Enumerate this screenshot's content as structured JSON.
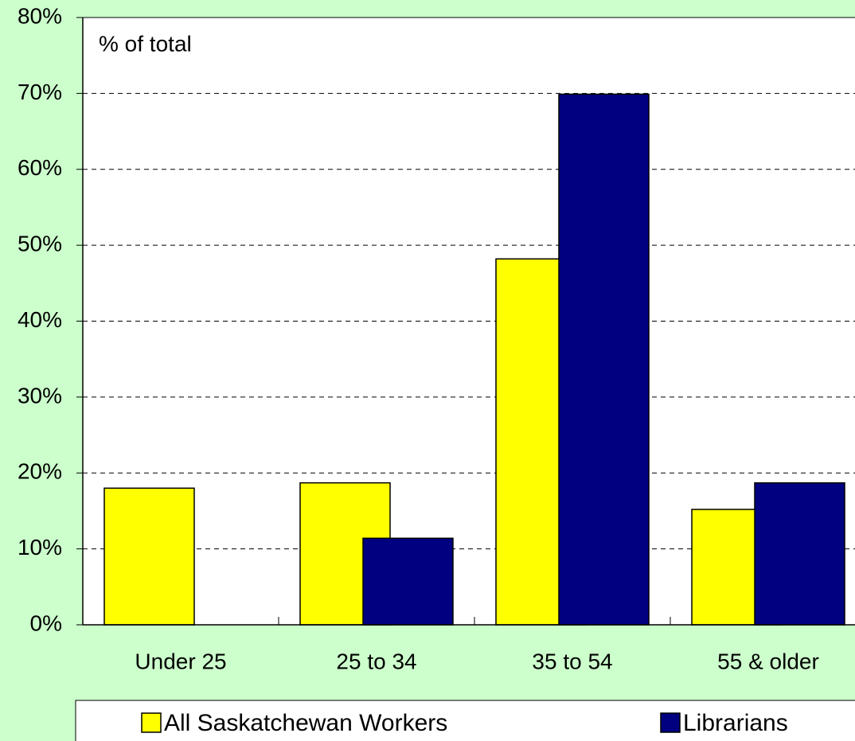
{
  "chart_data": {
    "type": "bar",
    "annotation": "% of total",
    "categories": [
      "Under 25",
      "25 to 34",
      "35 to 54",
      "55 & older"
    ],
    "series": [
      {
        "name": "All Saskatchewan Workers",
        "color": "#ffff00",
        "values": [
          18,
          18.7,
          48.2,
          15.2
        ]
      },
      {
        "name": "Librarians",
        "color": "#000080",
        "values": [
          0,
          11.4,
          69.9,
          18.7
        ]
      }
    ],
    "ylim": [
      0,
      80
    ],
    "yticks": [
      {
        "value": 0,
        "label": "0%"
      },
      {
        "value": 10,
        "label": "10%"
      },
      {
        "value": 20,
        "label": "20%"
      },
      {
        "value": 30,
        "label": "30%"
      },
      {
        "value": 40,
        "label": "40%"
      },
      {
        "value": 50,
        "label": "50%"
      },
      {
        "value": 60,
        "label": "60%"
      },
      {
        "value": 70,
        "label": "70%"
      },
      {
        "value": 80,
        "label": "80%"
      }
    ],
    "grid": true,
    "legend": "bottom"
  }
}
